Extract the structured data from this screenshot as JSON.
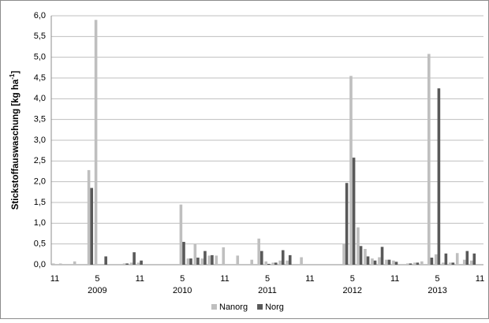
{
  "chart_data": {
    "type": "bar",
    "y_label": "Stickstoffauswaschung [kg ha",
    "y_label_sup": "-1",
    "y_label_end": "]",
    "categories": [
      "11",
      null,
      null,
      null,
      null,
      null,
      "5",
      null,
      null,
      null,
      null,
      null,
      "11",
      null,
      null,
      null,
      null,
      null,
      "5",
      null,
      null,
      null,
      null,
      null,
      "11",
      null,
      null,
      null,
      null,
      null,
      "5",
      null,
      null,
      null,
      null,
      null,
      "11",
      null,
      null,
      null,
      null,
      null,
      "5",
      null,
      null,
      null,
      null,
      null,
      "11",
      null,
      null,
      null,
      null,
      null,
      "5",
      null,
      null,
      null,
      null,
      null,
      "11"
    ],
    "category_groups": [
      null,
      null,
      null,
      null,
      null,
      null,
      "2009",
      null,
      null,
      null,
      null,
      null,
      null,
      null,
      null,
      null,
      null,
      null,
      "2010",
      null,
      null,
      null,
      null,
      null,
      null,
      null,
      null,
      null,
      null,
      null,
      "2011",
      null,
      null,
      null,
      null,
      null,
      null,
      null,
      null,
      null,
      null,
      null,
      "2012",
      null,
      null,
      null,
      null,
      null,
      null,
      null,
      null,
      null,
      null,
      null,
      "2013",
      null,
      null,
      null,
      null,
      null,
      null
    ],
    "series": [
      {
        "name": "Nanorg",
        "color": "#bfbfbf",
        "values": [
          0.03,
          0.03,
          0,
          0.08,
          0,
          2.28,
          5.9,
          0,
          0,
          0,
          0.03,
          0.05,
          0.05,
          0,
          0,
          0,
          0,
          0,
          1.45,
          0.15,
          0.5,
          0.15,
          0.22,
          0.22,
          0.42,
          0,
          0.22,
          0,
          0.12,
          0.63,
          0.08,
          0.05,
          0.1,
          0.1,
          0,
          0.18,
          0,
          0,
          0,
          0,
          0,
          0.5,
          4.55,
          0.9,
          0.38,
          0.15,
          0.18,
          0.12,
          0.1,
          0,
          0.03,
          0.05,
          0.08,
          5.08,
          0.25,
          0.05,
          0.05,
          0.28,
          0.12,
          0.1,
          0
        ]
      },
      {
        "name": "Norg",
        "color": "#595959",
        "values": [
          0,
          0,
          0,
          0,
          0,
          1.85,
          0,
          0.2,
          0,
          0,
          0.03,
          0.3,
          0.1,
          0,
          0,
          0,
          0,
          0,
          0.55,
          0.15,
          0.17,
          0.33,
          0.23,
          0,
          0,
          0,
          0,
          0,
          0,
          0.33,
          0.02,
          0.05,
          0.35,
          0.23,
          0,
          0,
          0,
          0,
          0,
          0,
          0,
          1.97,
          2.58,
          0.45,
          0.2,
          0.1,
          0.43,
          0.12,
          0.07,
          0,
          0.03,
          0.05,
          0,
          0.17,
          4.25,
          0.27,
          0.05,
          0,
          0.33,
          0.27,
          0
        ]
      }
    ],
    "ylim": [
      0,
      6
    ],
    "yticks": [
      {
        "value": 0,
        "label": "0,0"
      },
      {
        "value": 0.5,
        "label": "0,5"
      },
      {
        "value": 1,
        "label": "1,0"
      },
      {
        "value": 1.5,
        "label": "1,5"
      },
      {
        "value": 2,
        "label": "2,0"
      },
      {
        "value": 2.5,
        "label": "2,5"
      },
      {
        "value": 3,
        "label": "3,0"
      },
      {
        "value": 3.5,
        "label": "3,5"
      },
      {
        "value": 4,
        "label": "4,0"
      },
      {
        "value": 4.5,
        "label": "4,5"
      },
      {
        "value": 5,
        "label": "5,0"
      },
      {
        "value": 5.5,
        "label": "5,5"
      },
      {
        "value": 6,
        "label": "6,0"
      }
    ],
    "grid": true,
    "legend": "bottom"
  }
}
